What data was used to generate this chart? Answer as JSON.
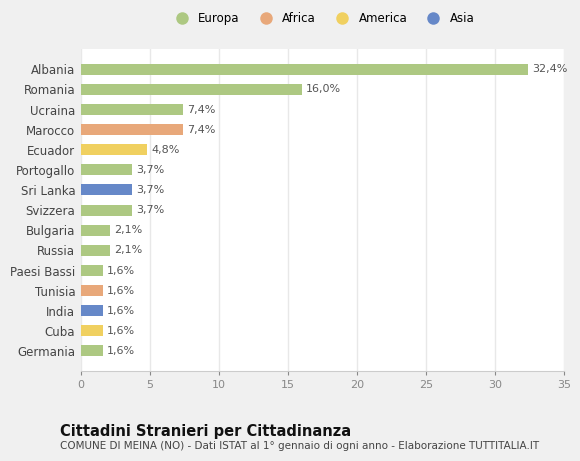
{
  "categories": [
    "Albania",
    "Romania",
    "Ucraina",
    "Marocco",
    "Ecuador",
    "Portogallo",
    "Sri Lanka",
    "Svizzera",
    "Bulgaria",
    "Russia",
    "Paesi Bassi",
    "Tunisia",
    "India",
    "Cuba",
    "Germania"
  ],
  "values": [
    32.4,
    16.0,
    7.4,
    7.4,
    4.8,
    3.7,
    3.7,
    3.7,
    2.1,
    2.1,
    1.6,
    1.6,
    1.6,
    1.6,
    1.6
  ],
  "labels": [
    "32,4%",
    "16,0%",
    "7,4%",
    "7,4%",
    "4,8%",
    "3,7%",
    "3,7%",
    "3,7%",
    "2,1%",
    "2,1%",
    "1,6%",
    "1,6%",
    "1,6%",
    "1,6%",
    "1,6%"
  ],
  "continents": [
    "Europa",
    "Europa",
    "Europa",
    "Africa",
    "America",
    "Europa",
    "Asia",
    "Europa",
    "Europa",
    "Europa",
    "Europa",
    "Africa",
    "Asia",
    "America",
    "Europa"
  ],
  "continent_colors": {
    "Europa": "#adc882",
    "Africa": "#e8a87a",
    "America": "#f0d060",
    "Asia": "#6688c8"
  },
  "legend_order": [
    "Europa",
    "Africa",
    "America",
    "Asia"
  ],
  "xlim": [
    0,
    35
  ],
  "xticks": [
    0,
    5,
    10,
    15,
    20,
    25,
    30,
    35
  ],
  "title": "Cittadini Stranieri per Cittadinanza",
  "subtitle": "COMUNE DI MEINA (NO) - Dati ISTAT al 1° gennaio di ogni anno - Elaborazione TUTTITALIA.IT",
  "outer_bg": "#f0f0f0",
  "plot_bg": "#ffffff",
  "grid_color": "#e8e8e8",
  "bar_height": 0.55,
  "label_fontsize": 8,
  "ytick_fontsize": 8.5,
  "xtick_fontsize": 8,
  "title_fontsize": 10.5,
  "subtitle_fontsize": 7.5,
  "legend_fontsize": 8.5
}
